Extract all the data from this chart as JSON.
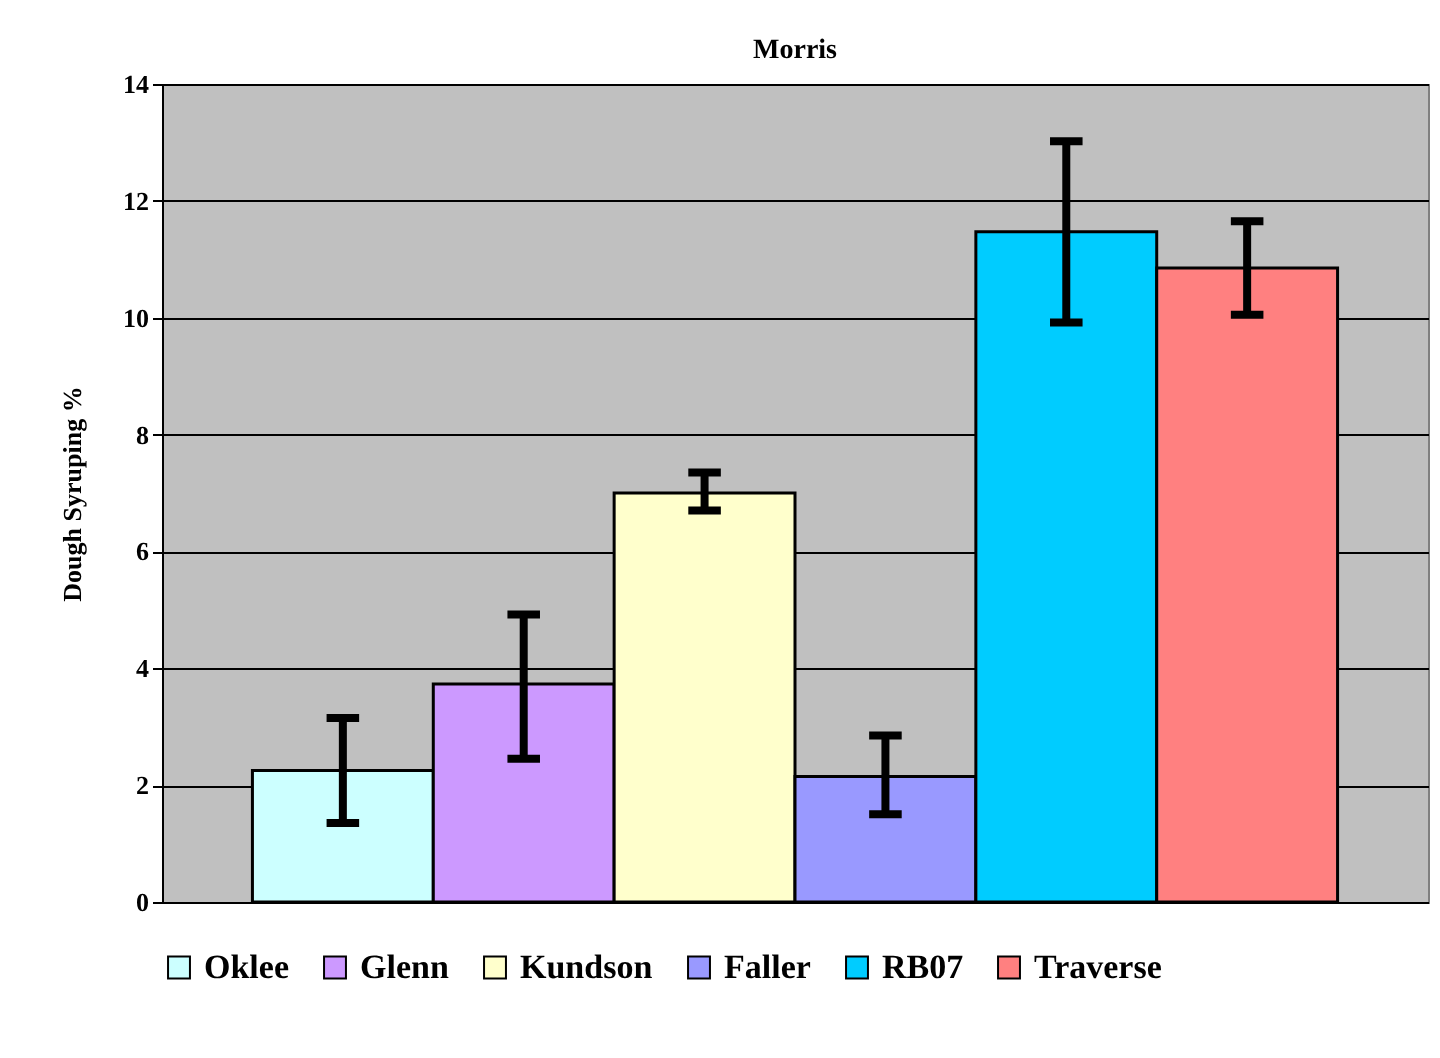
{
  "chart_data": {
    "type": "bar",
    "title": "Morris",
    "ylabel": "Dough Syruping %",
    "categories": [
      null
    ],
    "series": [
      {
        "name": "Oklee",
        "color": "#ccffff",
        "values": [
          2.25
        ],
        "errors": [
          [
            1.35,
            3.15
          ]
        ]
      },
      {
        "name": "Glenn",
        "color": "#cc99ff",
        "values": [
          3.73
        ],
        "errors": [
          [
            2.45,
            4.92
          ]
        ]
      },
      {
        "name": "Kundson",
        "color": "#ffffcc",
        "values": [
          7.0
        ],
        "errors": [
          [
            6.7,
            7.35
          ]
        ]
      },
      {
        "name": "Faller",
        "color": "#9999ff",
        "values": [
          2.15
        ],
        "errors": [
          [
            1.5,
            2.85
          ]
        ]
      },
      {
        "name": "RB07",
        "color": "#00ccff",
        "values": [
          11.47
        ],
        "errors": [
          [
            9.92,
            13.02
          ]
        ]
      },
      {
        "name": "Traverse",
        "color": "#ff8080",
        "values": [
          10.85
        ],
        "errors": [
          [
            10.05,
            11.65
          ]
        ]
      }
    ],
    "ylim": [
      0,
      14
    ],
    "yticks": [
      0,
      2,
      4,
      6,
      8,
      10,
      12,
      14
    ],
    "grid": "y",
    "legend": "bottom"
  }
}
